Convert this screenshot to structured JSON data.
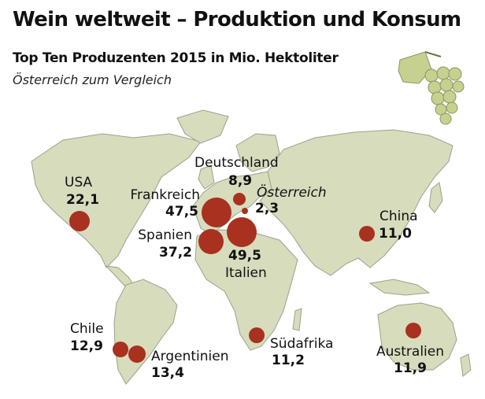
{
  "header": {
    "title": "Wein weltweit – Produktion und Konsum",
    "subtitle": "Top Ten Produzenten 2015 in Mio. Hektoliter",
    "note": "Österreich zum Vergleich"
  },
  "colors": {
    "land": "#d7dcbd",
    "border": "#9aa28a",
    "marker": "#a8311f",
    "grape": "#c6d190"
  },
  "icon": "grape-icon",
  "markers": [
    {
      "id": "usa",
      "country": "USA",
      "value": "22,1"
    },
    {
      "id": "frankreich",
      "country": "Frankreich",
      "value": "47,5"
    },
    {
      "id": "deutschland",
      "country": "Deutschland",
      "value": "8,9"
    },
    {
      "id": "oesterreich",
      "country": "Österreich",
      "value": "2,3"
    },
    {
      "id": "spanien",
      "country": "Spanien",
      "value": "37,2"
    },
    {
      "id": "italien",
      "country": "Italien",
      "value": "49,5"
    },
    {
      "id": "china",
      "country": "China",
      "value": "11,0"
    },
    {
      "id": "chile",
      "country": "Chile",
      "value": "12,9"
    },
    {
      "id": "argentinien",
      "country": "Argentinien",
      "value": "13,4"
    },
    {
      "id": "suedafrika",
      "country": "Südafrika",
      "value": "11,2"
    },
    {
      "id": "australien",
      "country": "Australien",
      "value": "11,9"
    }
  ]
}
